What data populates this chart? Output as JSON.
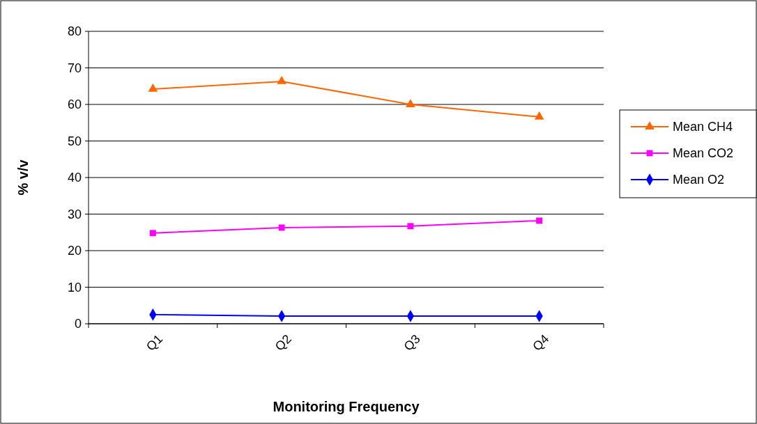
{
  "chart_data": {
    "type": "line",
    "xlabel": "Monitoring Frequency",
    "ylabel": "% v/v",
    "categories": [
      "Q1",
      "Q2",
      "Q3",
      "Q4"
    ],
    "series": [
      {
        "name": "Mean CH4",
        "color": "#ff6600",
        "marker": "triangle",
        "values": [
          64.2,
          66.3,
          60,
          56.6
        ]
      },
      {
        "name": "Mean CO2",
        "color": "#ff00ff",
        "marker": "square",
        "values": [
          24.8,
          26.3,
          26.7,
          28.2
        ]
      },
      {
        "name": "Mean O2",
        "color": "#0000ff",
        "marker": "diamond",
        "values": [
          2.5,
          2.1,
          2.1,
          2.1
        ]
      }
    ],
    "ylim": [
      0,
      80
    ],
    "yticks": [
      0,
      10,
      20,
      30,
      40,
      50,
      60,
      70,
      80
    ],
    "grid": "y",
    "legend": "right"
  }
}
